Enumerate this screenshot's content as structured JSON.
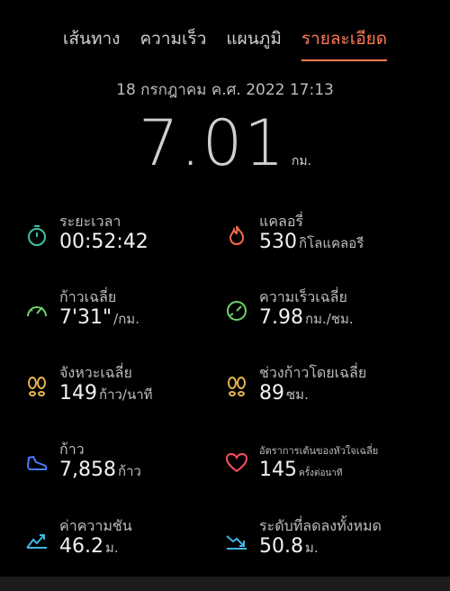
{
  "tabs": [
    {
      "label": "เส้นทาง",
      "active": false
    },
    {
      "label": "ความเร็ว",
      "active": false
    },
    {
      "label": "แผนภูมิ",
      "active": false
    },
    {
      "label": "รายละเอียด",
      "active": true
    }
  ],
  "datetime": "18 กรกฎาคม ค.ศ. 2022 17:13",
  "distance": {
    "value": "7.01",
    "unit": "กม."
  },
  "metrics": [
    {
      "label": "ระยะเวลา",
      "value": "00:52:42",
      "unit": "",
      "icon": "timer-icon",
      "color": "#3fbfa4"
    },
    {
      "label": "แคลอรี่",
      "value": "530",
      "unit": "กิโลแคลอรี",
      "icon": "flame-icon",
      "color": "#ff6b4a"
    },
    {
      "label": "ก้าวเฉลี่ย",
      "value": "7'31\"",
      "unit": "/กม.",
      "icon": "pace-gauge-icon",
      "color": "#6fd16a"
    },
    {
      "label": "ความเร็วเฉลี่ย",
      "value": "7.98",
      "unit": "กม./ชม.",
      "icon": "speed-gauge-icon",
      "color": "#6fd16a"
    },
    {
      "label": "จังหวะเฉลี่ย",
      "value": "149",
      "unit": "ก้าว/นาที",
      "icon": "footprints-icon",
      "color": "#e6b34a"
    },
    {
      "label": "ช่วงก้าวโดยเฉลี่ย",
      "value": "89",
      "unit": "ซม.",
      "icon": "footprints-icon",
      "color": "#e6b34a"
    },
    {
      "label": "ก้าว",
      "value": "7,858",
      "unit": "ก้าว",
      "icon": "shoe-icon",
      "color": "#4a7bff"
    },
    {
      "label": "อัตราการเต้นของหัวใจเฉลี่ย",
      "value": "145",
      "unit": "ครั้งต่อนาที",
      "icon": "heart-icon",
      "color": "#ff4d5e"
    },
    {
      "label": "ค่าความชัน",
      "value": "46.2",
      "unit": "ม.",
      "icon": "elevation-up-icon",
      "color": "#3fb6e0"
    },
    {
      "label": "ระดับที่ลดลงทั้งหมด",
      "value": "50.8",
      "unit": "ม.",
      "icon": "elevation-down-icon",
      "color": "#3fb6e0"
    }
  ]
}
